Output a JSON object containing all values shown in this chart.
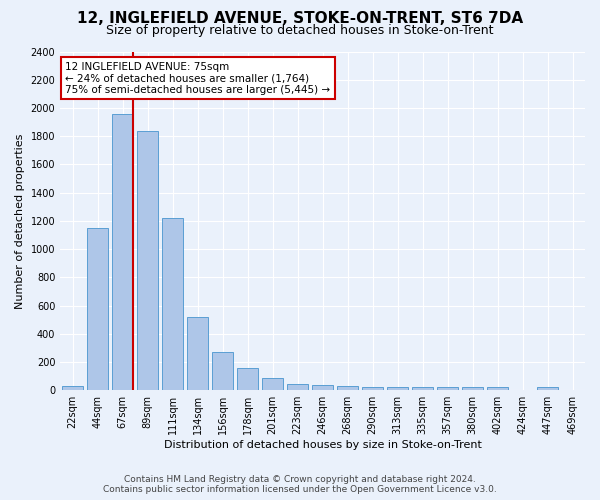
{
  "title": "12, INGLEFIELD AVENUE, STOKE-ON-TRENT, ST6 7DA",
  "subtitle": "Size of property relative to detached houses in Stoke-on-Trent",
  "xlabel": "Distribution of detached houses by size in Stoke-on-Trent",
  "ylabel": "Number of detached properties",
  "footnote1": "Contains HM Land Registry data © Crown copyright and database right 2024.",
  "footnote2": "Contains public sector information licensed under the Open Government Licence v3.0.",
  "bar_labels": [
    "22sqm",
    "44sqm",
    "67sqm",
    "89sqm",
    "111sqm",
    "134sqm",
    "156sqm",
    "178sqm",
    "201sqm",
    "223sqm",
    "246sqm",
    "268sqm",
    "290sqm",
    "313sqm",
    "335sqm",
    "357sqm",
    "380sqm",
    "402sqm",
    "424sqm",
    "447sqm",
    "469sqm"
  ],
  "bar_values": [
    30,
    1150,
    1960,
    1840,
    1220,
    520,
    270,
    155,
    85,
    45,
    40,
    30,
    20,
    20,
    20,
    20,
    20,
    20,
    5,
    20,
    5
  ],
  "bar_color": "#aec6e8",
  "bar_edge_color": "#5a9fd4",
  "red_line_bar_index": 2,
  "annotation_title": "12 INGLEFIELD AVENUE: 75sqm",
  "annotation_line1": "← 24% of detached houses are smaller (1,764)",
  "annotation_line2": "75% of semi-detached houses are larger (5,445) →",
  "ylim": [
    0,
    2400
  ],
  "yticks": [
    0,
    200,
    400,
    600,
    800,
    1000,
    1200,
    1400,
    1600,
    1800,
    2000,
    2200,
    2400
  ],
  "background_color": "#eaf1fb",
  "plot_bg_color": "#eaf1fb",
  "grid_color": "#ffffff",
  "annotation_box_facecolor": "#ffffff",
  "annotation_box_edgecolor": "#cc0000",
  "red_line_color": "#cc0000",
  "title_fontsize": 11,
  "subtitle_fontsize": 9,
  "ylabel_fontsize": 8,
  "xlabel_fontsize": 8,
  "footnote_fontsize": 6.5,
  "tick_fontsize": 7
}
